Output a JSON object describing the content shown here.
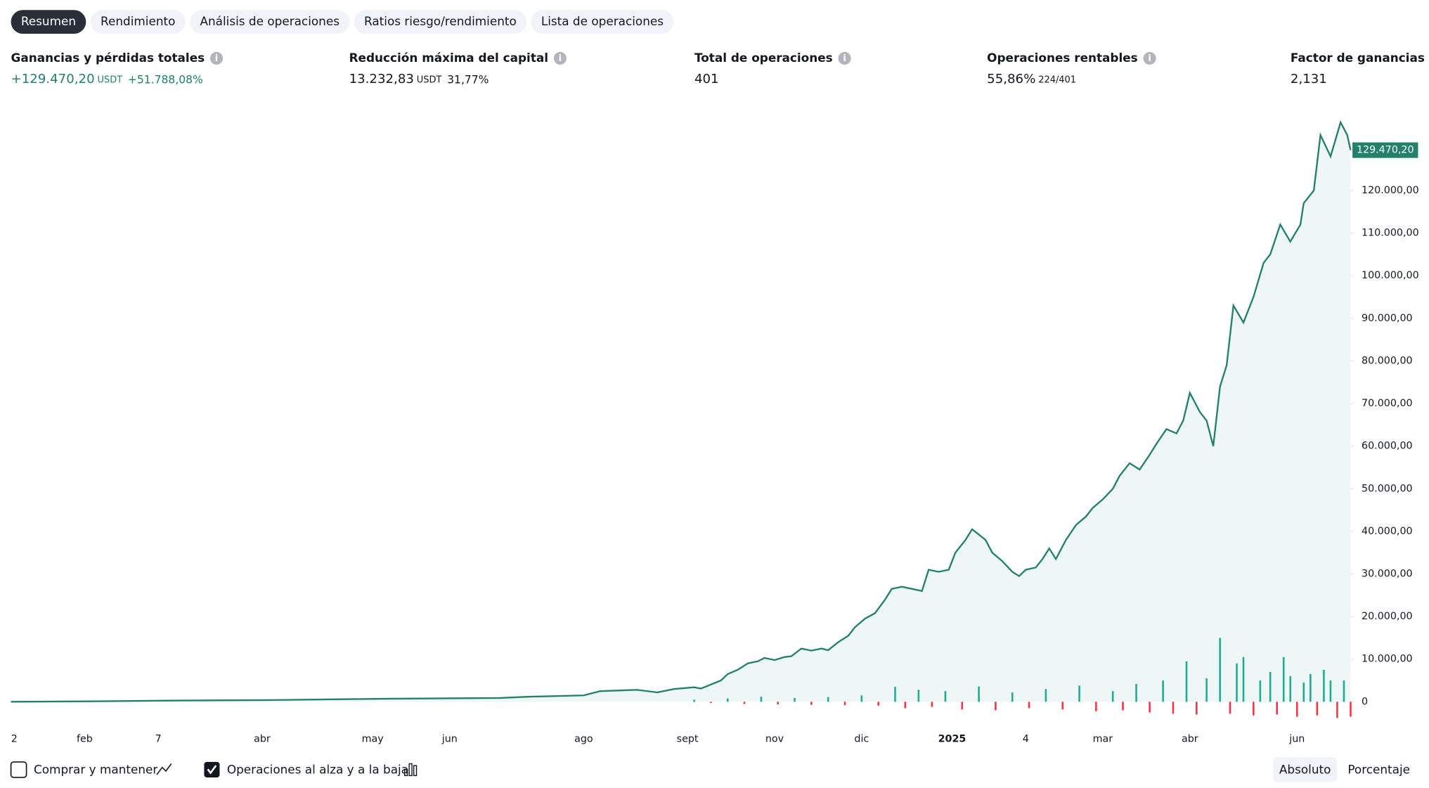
{
  "tabs": [
    "Resumen",
    "Rendimiento",
    "Análisis de operaciones",
    "Ratios riesgo/rendimiento",
    "Lista de operaciones"
  ],
  "metrics": [
    {
      "label": "Ganancias y pérdidas totales",
      "value": "+129.470,20",
      "unit": "USDT",
      "extra": "+51.788,08%"
    },
    {
      "label": "Reducción máxima del capital",
      "value": "13.232,83",
      "unit": "USDT",
      "extra": "31,77%"
    },
    {
      "label": "Total de operaciones",
      "value": "401"
    },
    {
      "label": "Operaciones rentables",
      "value": "55,86%",
      "extra": "224/401"
    },
    {
      "label": "Factor de ganancias",
      "value": "2,131"
    }
  ],
  "chart_data": {
    "type": "line",
    "color": "#22806b",
    "area_color": "#eef7f5",
    "up_color": "#22ab94",
    "down_color": "#f23645",
    "x": [
      1,
      25,
      52,
      79,
      112,
      147,
      156,
      172,
      177,
      188,
      194,
      199,
      205,
      207,
      213,
      215,
      218,
      221,
      224,
      226,
      229,
      232,
      234,
      237,
      240,
      243,
      245,
      248,
      251,
      253,
      256,
      259,
      262,
      264,
      267,
      270,
      273,
      275,
      278,
      281,
      283,
      286,
      288,
      292,
      294,
      297,
      300,
      302,
      304,
      307,
      309,
      311,
      313,
      316,
      319,
      322,
      324,
      327,
      330,
      332,
      335,
      338,
      341,
      343,
      346,
      349,
      351,
      353,
      356,
      358,
      360,
      362,
      364,
      366,
      369,
      372,
      375,
      377,
      380,
      383,
      386,
      387,
      390,
      392,
      395,
      398,
      400,
      401
    ],
    "values": [
      0,
      100,
      300,
      400,
      700,
      900,
      1200,
      1500,
      2500,
      2800,
      2200,
      3000,
      3400,
      3100,
      5000,
      6500,
      7500,
      9000,
      9500,
      10300,
      9800,
      10500,
      10700,
      12500,
      12000,
      12500,
      12100,
      14000,
      15500,
      17500,
      19500,
      20800,
      24000,
      26500,
      27000,
      26500,
      26000,
      31000,
      30500,
      31000,
      35000,
      38000,
      40500,
      38000,
      35000,
      33000,
      30500,
      29500,
      31000,
      31500,
      33500,
      36000,
      33500,
      38000,
      41500,
      43500,
      45500,
      47500,
      50000,
      53000,
      56000,
      54500,
      58000,
      60500,
      64000,
      63000,
      66000,
      72500,
      68000,
      66000,
      60000,
      74000,
      79000,
      93000,
      89000,
      95000,
      103000,
      105000,
      112000,
      108000,
      112000,
      117000,
      120000,
      133000,
      128000,
      136000,
      133000,
      129470.2
    ],
    "last_label": "129.470,20",
    "trades": {
      "x": [
        205,
        210,
        215,
        220,
        225,
        230,
        235,
        240,
        245,
        250,
        255,
        260,
        265,
        268,
        272,
        276,
        280,
        285,
        290,
        295,
        300,
        305,
        310,
        315,
        320,
        325,
        330,
        333,
        337,
        341,
        345,
        348,
        352,
        355,
        358,
        362,
        365,
        367,
        369,
        372,
        374,
        377,
        379,
        381,
        383,
        385,
        387,
        389,
        391,
        393,
        395,
        397,
        399,
        401
      ],
      "values": [
        500,
        -300,
        800,
        -500,
        1200,
        -600,
        900,
        -700,
        1100,
        -800,
        1500,
        -900,
        3500,
        -1500,
        2800,
        -1200,
        2500,
        -1800,
        3600,
        -2000,
        2200,
        -1500,
        3000,
        -1800,
        3800,
        -2200,
        2500,
        -2000,
        4200,
        -2500,
        5000,
        -2800,
        9500,
        -3000,
        5500,
        15000,
        -2800,
        9000,
        10500,
        -3200,
        5000,
        7000,
        -3000,
        10500,
        6000,
        -3500,
        4500,
        6500,
        -3200,
        7500,
        5000,
        -3800,
        5000,
        -3500
      ]
    },
    "xlim": [
      1,
      401
    ],
    "ylim": [
      -4000,
      139000
    ],
    "yticks": [
      0,
      {
        "value": 10000,
        "label": "10.000,00"
      },
      {
        "value": 20000,
        "label": "20.000,00"
      },
      {
        "value": 30000,
        "label": "30.000,00"
      },
      {
        "value": 40000,
        "label": "40.000,00"
      },
      {
        "value": 50000,
        "label": "50.000,00"
      },
      {
        "value": 60000,
        "label": "60.000,00"
      },
      {
        "value": 70000,
        "label": "70.000,00"
      },
      {
        "value": 80000,
        "label": "80.000,00"
      },
      {
        "value": 90000,
        "label": "90.000,00"
      },
      {
        "value": 100000,
        "label": "100.000,00"
      },
      {
        "value": 110000,
        "label": "110.000,00"
      },
      {
        "value": 120000,
        "label": "120.000,00"
      }
    ],
    "xticks": [
      {
        "value": 2,
        "label": "2"
      },
      {
        "value": 23,
        "label": "feb"
      },
      {
        "value": 45,
        "label": "7"
      },
      {
        "value": 76,
        "label": "abr"
      },
      {
        "value": 109,
        "label": "may"
      },
      {
        "value": 132,
        "label": "jun"
      },
      {
        "value": 172,
        "label": "ago"
      },
      {
        "value": 203,
        "label": "sept"
      },
      {
        "value": 229,
        "label": "nov"
      },
      {
        "value": 255,
        "label": "dic"
      },
      {
        "value": 282,
        "label": "2025"
      },
      {
        "value": 304,
        "label": "4"
      },
      {
        "value": 327,
        "label": "mar"
      },
      {
        "value": 353,
        "label": "abr"
      },
      {
        "value": 385,
        "label": "jun"
      }
    ]
  },
  "footer": {
    "toggles": [
      "Comprar y mantener",
      "Operaciones al alza y a la baja"
    ],
    "modes": [
      "Absoluto",
      "Porcentaje"
    ]
  }
}
